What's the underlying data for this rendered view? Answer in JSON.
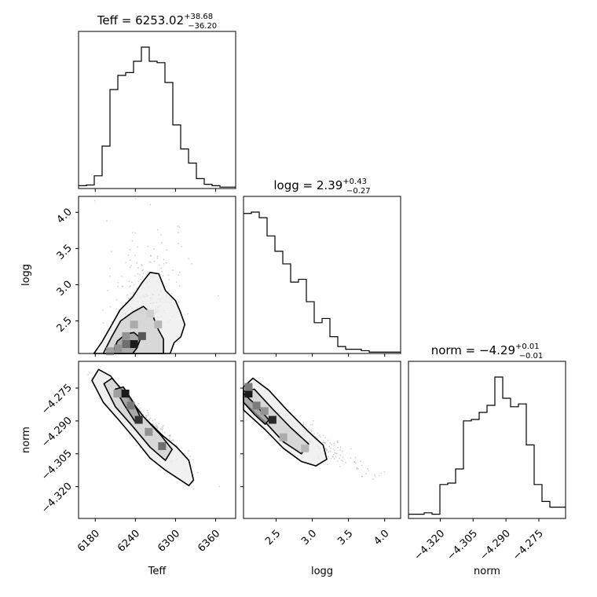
{
  "chart_data": {
    "type": "corner",
    "parameters": [
      "Teff",
      "logg",
      "norm"
    ],
    "titles": [
      {
        "name": "Teff",
        "median": "6253.02",
        "plus": "+38.68",
        "minus": "−36.20"
      },
      {
        "name": "logg",
        "median": "2.39",
        "plus": "+0.43",
        "minus": "−0.27"
      },
      {
        "name": "norm",
        "median": "−4.29",
        "plus": "+0.01",
        "minus": "−0.01"
      }
    ],
    "axes": {
      "Teff": {
        "range": [
          6155,
          6390
        ],
        "ticks": [
          6180,
          6240,
          6300,
          6360
        ],
        "tick_labels": [
          "6180",
          "6240",
          "6300",
          "6360"
        ]
      },
      "logg": {
        "range": [
          2.05,
          4.22
        ],
        "ticks": [
          2.5,
          3.0,
          3.5,
          4.0
        ],
        "tick_labels": [
          "2.5",
          "3.0",
          "3.5",
          "4.0"
        ]
      },
      "norm": {
        "range": [
          -4.3345,
          -4.2628
        ],
        "ticks": [
          -4.32,
          -4.305,
          -4.29,
          -4.275
        ],
        "tick_labels": [
          "−4.320",
          "−4.305",
          "−4.290",
          "−4.275"
        ]
      }
    },
    "histograms": {
      "Teff": {
        "edges": [
          6155,
          6166.75,
          6178.5,
          6190.25,
          6202,
          6213.75,
          6225.5,
          6237.25,
          6249,
          6260.75,
          6272.5,
          6284.25,
          6296,
          6307.75,
          6319.5,
          6331.25,
          6343,
          6354.75,
          6366.5,
          6378.25,
          6390
        ],
        "counts": [
          2,
          2.5,
          9,
          30,
          70,
          80,
          82,
          90,
          100,
          90,
          89,
          75,
          45,
          28,
          18,
          7,
          3,
          2,
          1,
          1
        ]
      },
      "logg": {
        "edges": [
          2.05,
          2.1585,
          2.267,
          2.3755,
          2.484,
          2.5925,
          2.701,
          2.8095,
          2.918,
          3.0265,
          3.135,
          3.2435,
          3.352,
          3.4605,
          3.569,
          3.6775,
          3.786,
          3.8945,
          4.003,
          4.1115,
          4.22
        ],
        "counts": [
          100,
          101,
          97,
          84,
          73,
          64,
          51,
          53,
          37,
          22,
          25,
          12,
          5,
          3,
          3,
          2,
          1,
          1,
          1,
          1
        ]
      },
      "norm": {
        "edges": [
          -4.3345,
          -4.33092,
          -4.32733,
          -4.32375,
          -4.32016,
          -4.31658,
          -4.31299,
          -4.30941,
          -4.30582,
          -4.30224,
          -4.29865,
          -4.29507,
          -4.29148,
          -4.2879,
          -4.28431,
          -4.28073,
          -4.27714,
          -4.27356,
          -4.26997,
          -4.26639,
          -4.2628
        ],
        "counts": [
          3,
          3,
          4,
          3,
          24,
          25,
          35,
          69,
          70,
          75,
          80,
          100,
          85,
          79,
          81,
          52,
          24,
          12,
          8,
          8
        ]
      }
    },
    "contours_2d": [
      {
        "x": "Teff",
        "y": "logg",
        "levels": [
          [
            [
              6178,
              2.05
            ],
            [
              6190,
              2.21
            ],
            [
              6203,
              2.42
            ],
            [
              6217,
              2.65
            ],
            [
              6236,
              2.83
            ],
            [
              6250,
              3.03
            ],
            [
              6262,
              3.17
            ],
            [
              6275,
              3.15
            ],
            [
              6285,
              2.92
            ],
            [
              6300,
              2.78
            ],
            [
              6307,
              2.63
            ],
            [
              6314,
              2.45
            ],
            [
              6308,
              2.28
            ],
            [
              6298,
              2.2
            ],
            [
              6292,
              2.05
            ]
          ],
          [
            [
              6192,
              2.05
            ],
            [
              6204,
              2.27
            ],
            [
              6218,
              2.5
            ],
            [
              6236,
              2.62
            ],
            [
              6252,
              2.7
            ],
            [
              6266,
              2.58
            ],
            [
              6272,
              2.42
            ],
            [
              6282,
              2.25
            ],
            [
              6282,
              2.05
            ]
          ],
          [
            [
              6205,
              2.05
            ],
            [
              6213,
              2.22
            ],
            [
              6226,
              2.32
            ],
            [
              6238,
              2.34
            ],
            [
              6248,
              2.26
            ],
            [
              6242,
              2.12
            ],
            [
              6236,
              2.05
            ]
          ]
        ]
      },
      {
        "x": "Teff",
        "y": "norm",
        "levels": [
          [
            [
              6175,
              -4.2715
            ],
            [
              6185,
              -4.2665
            ],
            [
              6203,
              -4.2695
            ],
            [
              6230,
              -4.2805
            ],
            [
              6255,
              -4.289
            ],
            [
              6282,
              -4.297
            ],
            [
              6302,
              -4.302
            ],
            [
              6320,
              -4.308
            ],
            [
              6327,
              -4.317
            ],
            [
              6320,
              -4.3195
            ],
            [
              6305,
              -4.3165
            ],
            [
              6285,
              -4.3125
            ],
            [
              6262,
              -4.307
            ],
            [
              6240,
              -4.2985
            ],
            [
              6215,
              -4.2895
            ],
            [
              6192,
              -4.2815
            ]
          ],
          [
            [
              6193,
              -4.273
            ],
            [
              6205,
              -4.2705
            ],
            [
              6228,
              -4.2785
            ],
            [
              6252,
              -4.288
            ],
            [
              6278,
              -4.2965
            ],
            [
              6295,
              -4.303
            ],
            [
              6285,
              -4.308
            ],
            [
              6262,
              -4.302
            ],
            [
              6236,
              -4.2925
            ],
            [
              6210,
              -4.2835
            ]
          ],
          [
            [
              6210,
              -4.2755
            ],
            [
              6222,
              -4.2745
            ],
            [
              6238,
              -4.282
            ],
            [
              6250,
              -4.29
            ],
            [
              6240,
              -4.2905
            ],
            [
              6224,
              -4.283
            ]
          ]
        ]
      },
      {
        "x": "logg",
        "y": "norm",
        "levels": [
          [
            [
              2.05,
              -4.2745
            ],
            [
              2.18,
              -4.2705
            ],
            [
              2.4,
              -4.276
            ],
            [
              2.65,
              -4.285
            ],
            [
              2.95,
              -4.295
            ],
            [
              3.15,
              -4.301
            ],
            [
              3.2,
              -4.3075
            ],
            [
              3.05,
              -4.3105
            ],
            [
              2.85,
              -4.3085
            ],
            [
              2.6,
              -4.3025
            ],
            [
              2.35,
              -4.294
            ],
            [
              2.15,
              -4.288
            ],
            [
              2.05,
              -4.285
            ]
          ],
          [
            [
              2.05,
              -4.2765
            ],
            [
              2.2,
              -4.2755
            ],
            [
              2.45,
              -4.2845
            ],
            [
              2.7,
              -4.293
            ],
            [
              2.95,
              -4.3005
            ],
            [
              2.85,
              -4.305
            ],
            [
              2.6,
              -4.2995
            ],
            [
              2.35,
              -4.2905
            ],
            [
              2.05,
              -4.2815
            ]
          ],
          [
            [
              2.05,
              -4.2775
            ],
            [
              2.2,
              -4.282
            ],
            [
              2.4,
              -4.2895
            ],
            [
              2.35,
              -4.2915
            ],
            [
              2.2,
              -4.287
            ],
            [
              2.05,
              -4.2815
            ]
          ]
        ]
      }
    ],
    "hist2d_blocks": [
      {
        "x": "Teff",
        "y": "logg",
        "cells": [
          [
            6238,
            2.18,
            0.95
          ],
          [
            6226,
            2.18,
            0.6
          ],
          [
            6250,
            2.29,
            0.7
          ],
          [
            6214,
            2.12,
            0.45
          ],
          [
            6226,
            2.29,
            0.45
          ],
          [
            6262,
            2.6,
            0.2
          ],
          [
            6274,
            2.45,
            0.3
          ],
          [
            6238,
            2.45,
            0.35
          ],
          [
            6202,
            2.08,
            0.4
          ]
        ]
      },
      {
        "x": "Teff",
        "y": "norm",
        "cells": [
          [
            6225,
            -4.2775,
            0.95
          ],
          [
            6245,
            -4.2895,
            0.85
          ],
          [
            6233,
            -4.283,
            0.55
          ],
          [
            6260,
            -4.295,
            0.45
          ],
          [
            6280,
            -4.3015,
            0.6
          ],
          [
            6213,
            -4.2775,
            0.4
          ]
        ]
      },
      {
        "x": "logg",
        "y": "norm",
        "cells": [
          [
            2.12,
            -4.2775,
            0.95
          ],
          [
            2.12,
            -4.2745,
            0.55
          ],
          [
            2.23,
            -4.283,
            0.55
          ],
          [
            2.45,
            -4.2895,
            0.9
          ],
          [
            2.6,
            -4.2975,
            0.35
          ],
          [
            2.34,
            -4.2855,
            0.45
          ],
          [
            2.9,
            -4.3025,
            0.3
          ]
        ]
      }
    ]
  }
}
